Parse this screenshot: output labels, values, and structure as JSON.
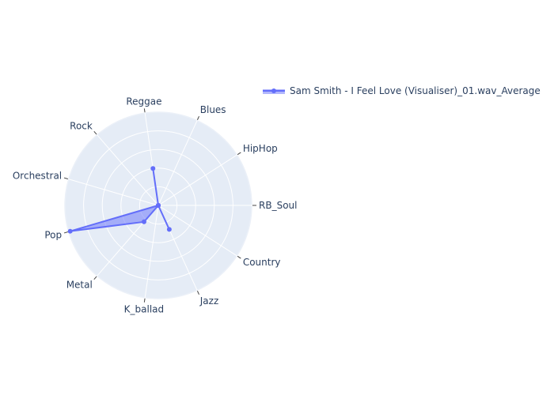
{
  "chart_data": {
    "type": "radar",
    "title": "",
    "angular_axis_direction": "counterclockwise",
    "categories": [
      "RB_Soul",
      "HipHop",
      "Blues",
      "Reggae",
      "Rock",
      "Orchestral",
      "Pop",
      "Metal",
      "K_ballad",
      "Jazz",
      "Country"
    ],
    "series": [
      {
        "name": "Sam Smith - I Feel Love (Visualiser)_01.wav_Average",
        "values": [
          0.0,
          0.0,
          0.0,
          0.24,
          0.0,
          0.0,
          0.59,
          0.14,
          0.0,
          0.17,
          0.0
        ],
        "fill": "toself",
        "color": "#636efa"
      }
    ],
    "radial_range": [
      0,
      0.6
    ],
    "radial_gridlines": 5,
    "radial_ticklabels_visible": false,
    "grid": true,
    "legend_position": "top-right",
    "colors": {
      "polar_background": "#e5ecf6",
      "gridline": "#ffffff",
      "text": "#2a3f5f",
      "series": "#636efa"
    }
  }
}
